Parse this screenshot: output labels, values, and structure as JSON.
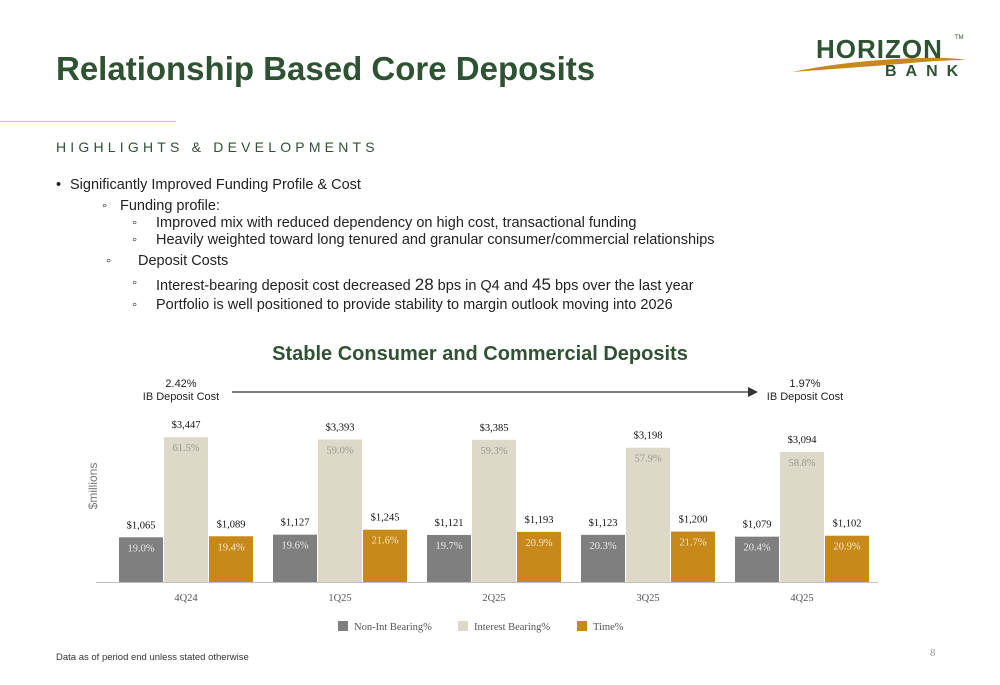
{
  "title": "Relationship Based Core Deposits",
  "logo": {
    "word": "HORIZON",
    "sub": "BANK",
    "tm": "TM"
  },
  "section_heading": "HIGHLIGHTS & DEVELOPMENTS",
  "bullets": {
    "main": "Significantly Improved Funding Profile & Cost",
    "funding_profile": "Funding profile:",
    "fp_1": "Improved mix with reduced dependency on high cost, transactional funding",
    "fp_2": "Heavily weighted toward long tenured and granular consumer/commercial relationships",
    "deposit_costs": "Deposit Costs",
    "dc_1_a": "Interest-bearing deposit cost decreased ",
    "dc_1_b": "28",
    "dc_1_c": " bps in Q4 and ",
    "dc_1_d": "45",
    "dc_1_e": " bps over the last year",
    "dc_2": "Portfolio is well positioned to provide stability to margin outlook moving into 2026"
  },
  "bullet_markers": {
    "main": "•",
    "sub": "◦"
  },
  "chart_title": "Stable Consumer and Commercial Deposits",
  "ib_cost_start": {
    "value": "2.42%",
    "label": "IB Deposit Cost"
  },
  "ib_cost_end": {
    "value": "1.97%",
    "label": "IB Deposit Cost"
  },
  "footnote": "Data as of period end unless stated otherwise",
  "page_number": "8",
  "colors": {
    "green": "#2f5233",
    "gold": "#c8891b",
    "gray": "#7f7f7f",
    "beige": "#ddd9c9"
  },
  "chart_data": {
    "type": "bar",
    "ylabel": "$millions",
    "categories": [
      "4Q24",
      "1Q25",
      "2Q25",
      "3Q25",
      "4Q25"
    ],
    "series": [
      {
        "name": "Non-Int Bearing%",
        "amounts": [
          "$1,065",
          "$1,127",
          "$1,121",
          "$1,123",
          "$1,079"
        ],
        "values": [
          1065,
          1127,
          1121,
          1123,
          1079
        ],
        "percents": [
          "19.0%",
          "19.6%",
          "19.7%",
          "20.3%",
          "20.4%"
        ]
      },
      {
        "name": "Interest Bearing%",
        "amounts": [
          "$3,447",
          "$3,393",
          "$3,385",
          "$3,198",
          "$3,094"
        ],
        "values": [
          3447,
          3393,
          3385,
          3198,
          3094
        ],
        "percents": [
          "61.5%",
          "59.0%",
          "59.3%",
          "57.9%",
          "58.8%"
        ]
      },
      {
        "name": "Time%",
        "amounts": [
          "$1,089",
          "$1,245",
          "$1,193",
          "$1,200",
          "$1,102"
        ],
        "values": [
          1089,
          1245,
          1193,
          1200,
          1102
        ],
        "percents": [
          "19.4%",
          "21.6%",
          "20.9%",
          "21.7%",
          "20.9%"
        ]
      }
    ]
  }
}
